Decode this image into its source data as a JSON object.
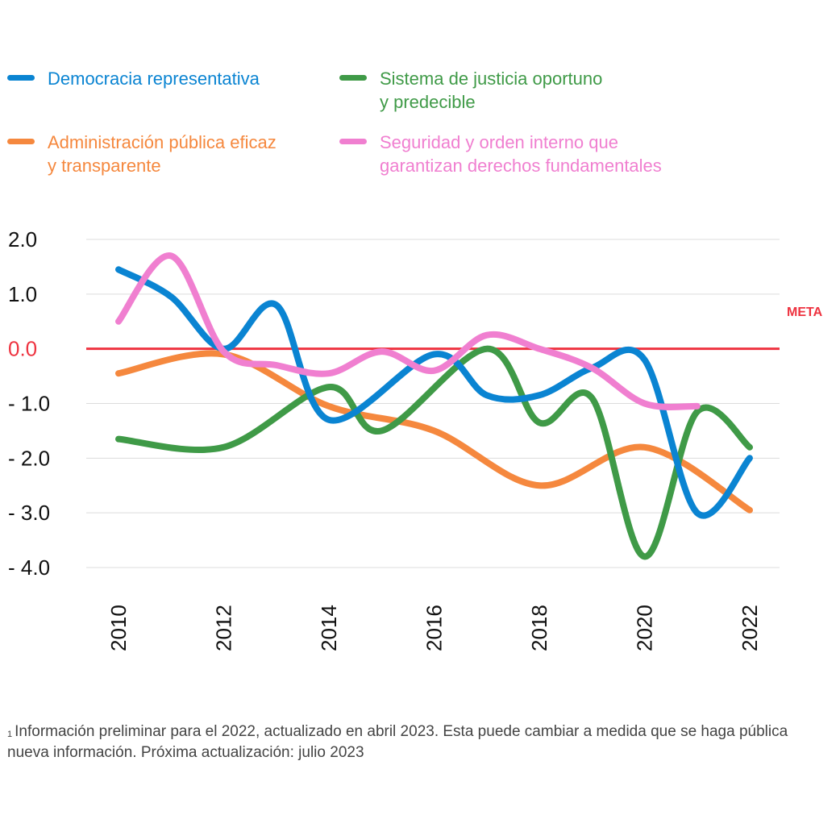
{
  "legend": [
    {
      "label": "Democracia representativa",
      "color": "#0a84d2"
    },
    {
      "label": "Sistema de justicia oportuno\ny predecible",
      "color": "#3f9a47"
    },
    {
      "label": "Administración pública eficaz\ny transparente",
      "color": "#f5883e"
    },
    {
      "label": "Seguridad y orden interno que\ngarantizan derechos fundamentales",
      "color": "#f07fd0"
    }
  ],
  "meta_label": "META",
  "meta_color": "#ee3340",
  "footnote": {
    "marker": "1",
    "text": "Información preliminar para el 2022, actualizado en abril 2023. Esta puede cambiar a medida que se haga pública nueva información. Próxima actualización: julio 2023"
  },
  "chart_data": {
    "type": "line",
    "smooth": true,
    "grid": true,
    "ylim": [
      -4.0,
      2.0
    ],
    "yticks": [
      2.0,
      1.0,
      0.0,
      -1.0,
      -2.0,
      -3.0,
      -4.0
    ],
    "ytick_labels": [
      "2.0",
      "1.0",
      "0.0",
      "- 1.0",
      "- 2.0",
      "- 3.0",
      "- 4.0"
    ],
    "xlim": [
      2010,
      2022
    ],
    "xticks": [
      2010,
      2012,
      2014,
      2016,
      2018,
      2020,
      2022
    ],
    "xtick_labels": [
      "2010",
      "2012",
      "2014",
      "2016",
      "2018",
      "2020",
      "2022"
    ],
    "reference_line": {
      "y": 0.0,
      "label": "META"
    },
    "series": [
      {
        "name": "Administración pública eficaz y transparente",
        "color": "#f5883e",
        "x": [
          2010,
          2012,
          2014,
          2016,
          2018,
          2020,
          2022
        ],
        "y": [
          -0.45,
          -0.1,
          -1.05,
          -1.5,
          -2.5,
          -1.8,
          -2.95
        ]
      },
      {
        "name": "Sistema de justicia oportuno y predecible",
        "color": "#3f9a47",
        "x": [
          2010,
          2012,
          2014,
          2015,
          2017,
          2018,
          2019,
          2020,
          2021,
          2022
        ],
        "y": [
          -1.65,
          -1.8,
          -0.7,
          -1.5,
          0.0,
          -1.35,
          -0.9,
          -3.8,
          -1.15,
          -1.8
        ]
      },
      {
        "name": "Democracia representativa",
        "color": "#0a84d2",
        "x": [
          2010,
          2011,
          2012,
          2013,
          2014,
          2016,
          2017,
          2018,
          2019,
          2020,
          2021,
          2022
        ],
        "y": [
          1.45,
          0.95,
          0.0,
          0.8,
          -1.3,
          -0.1,
          -0.85,
          -0.85,
          -0.35,
          -0.2,
          -3.0,
          -2.0
        ]
      },
      {
        "name": "Seguridad y orden interno que garantizan derechos fundamentales",
        "color": "#f07fd0",
        "x": [
          2010,
          2011,
          2012,
          2013,
          2014,
          2015,
          2016,
          2017,
          2018,
          2019,
          2020,
          2021
        ],
        "y": [
          0.5,
          1.7,
          -0.05,
          -0.3,
          -0.45,
          -0.05,
          -0.4,
          0.25,
          0.0,
          -0.35,
          -1.0,
          -1.05
        ]
      }
    ]
  }
}
